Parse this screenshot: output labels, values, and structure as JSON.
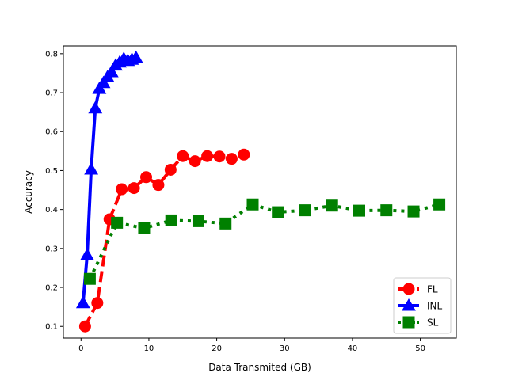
{
  "chart_data": {
    "type": "line",
    "title": "",
    "xlabel": "Data Transmited (GB)",
    "ylabel": "Accuracy",
    "xlim": [
      -2.6,
      55.3
    ],
    "ylim": [
      0.07,
      0.82
    ],
    "xticks": [
      0,
      10,
      20,
      30,
      40,
      50
    ],
    "yticks": [
      0.1,
      0.2,
      0.3,
      0.4,
      0.5,
      0.6,
      0.7,
      0.8
    ],
    "xtick_labels": [
      "0",
      "10",
      "20",
      "30",
      "40",
      "50"
    ],
    "ytick_labels": [
      "0.1",
      "0.2",
      "0.3",
      "0.4",
      "0.5",
      "0.6",
      "0.7",
      "0.8"
    ],
    "grid": false,
    "legend_position": "lower right",
    "series": [
      {
        "name": "FL",
        "color": "#ff0000",
        "linestyle": "dashed",
        "marker": "circle",
        "x": [
          0.6,
          2.4,
          4.2,
          6.0,
          7.8,
          9.6,
          11.4,
          13.2,
          15.0,
          16.8,
          18.6,
          20.4,
          22.2,
          24.0
        ],
        "y": [
          0.1,
          0.16,
          0.375,
          0.452,
          0.455,
          0.483,
          0.463,
          0.502,
          0.537,
          0.524,
          0.537,
          0.536,
          0.53,
          0.541
        ]
      },
      {
        "name": "INL",
        "color": "#0000ff",
        "linestyle": "solid",
        "marker": "triangle",
        "x": [
          0.3,
          0.9,
          1.5,
          2.1,
          2.7,
          3.3,
          3.9,
          4.5,
          5.1,
          5.7,
          6.3,
          6.9,
          7.5,
          8.1
        ],
        "y": [
          0.16,
          0.283,
          0.503,
          0.66,
          0.71,
          0.725,
          0.74,
          0.753,
          0.77,
          0.778,
          0.787,
          0.782,
          0.785,
          0.79
        ]
      },
      {
        "name": "SL",
        "color": "#008000",
        "linestyle": "dotted",
        "marker": "square",
        "x": [
          1.3,
          5.3,
          9.3,
          13.3,
          17.3,
          21.3,
          25.3,
          29.0,
          33.0,
          37.0,
          41.0,
          45.0,
          49.0,
          52.8
        ],
        "y": [
          0.222,
          0.366,
          0.352,
          0.372,
          0.37,
          0.364,
          0.413,
          0.393,
          0.398,
          0.41,
          0.397,
          0.398,
          0.395,
          0.413
        ]
      }
    ]
  }
}
